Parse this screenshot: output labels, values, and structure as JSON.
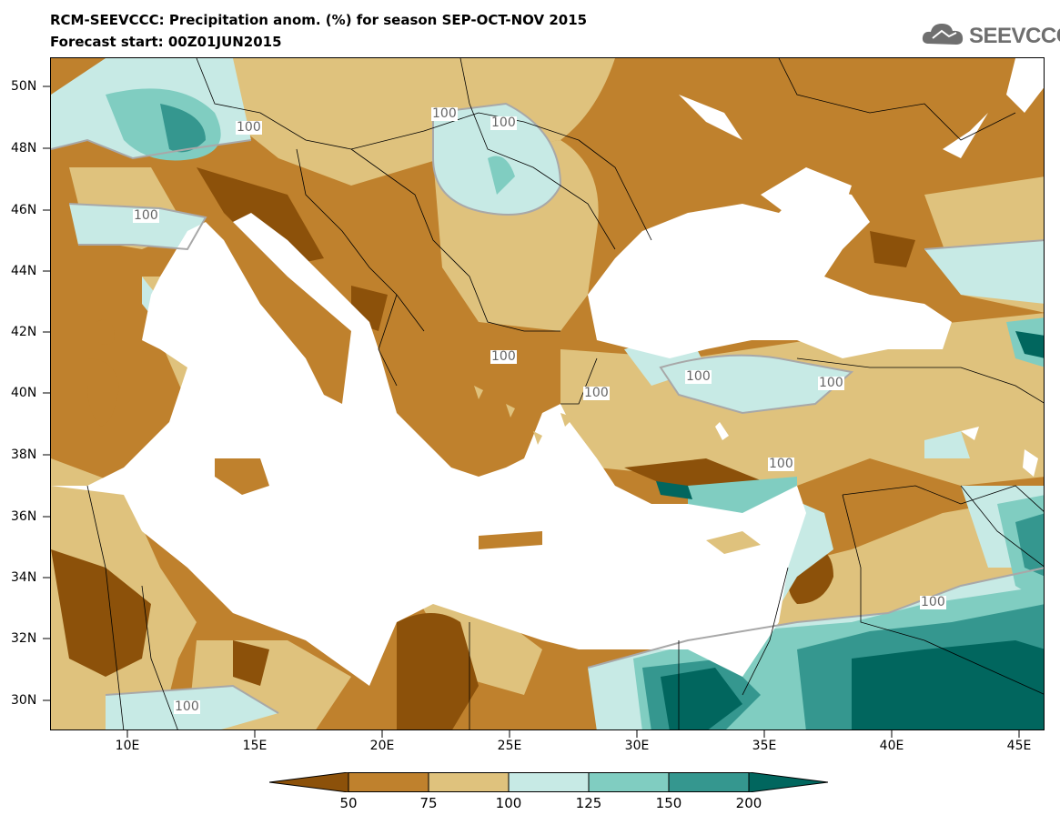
{
  "header": {
    "title_line1": "RCM-SEEVCCC: Precipitation anom. (%) for season SEP-OCT-NOV 2015",
    "title_line2": "Forecast start: 00Z01JUN2015",
    "logo_text": "SEEVCCC"
  },
  "map": {
    "lat_ticks": [
      "50N",
      "48N",
      "46N",
      "44N",
      "42N",
      "40N",
      "38N",
      "36N",
      "34N",
      "32N",
      "30N"
    ],
    "lon_ticks": [
      "10E",
      "15E",
      "20E",
      "25E",
      "30E",
      "35E",
      "40E",
      "45E"
    ],
    "contour_labels": [
      "100",
      "100",
      "100",
      "100",
      "100",
      "100",
      "100",
      "100",
      "100",
      "100",
      "100"
    ],
    "water_color": "#ffffff",
    "region_colors": {
      "lt50": "#8c510a",
      "50_75": "#bf812d",
      "75_100": "#dfc27d",
      "100_125": "#c7eae5",
      "125_150": "#80cdc1",
      "150_200": "#35978f",
      "gt200": "#01665e"
    }
  },
  "colorbar": {
    "labels": [
      "50",
      "75",
      "100",
      "125",
      "150",
      "200"
    ],
    "colors": [
      "#8c510a",
      "#bf812d",
      "#dfc27d",
      "#c7eae5",
      "#80cdc1",
      "#35978f",
      "#01665e"
    ]
  }
}
